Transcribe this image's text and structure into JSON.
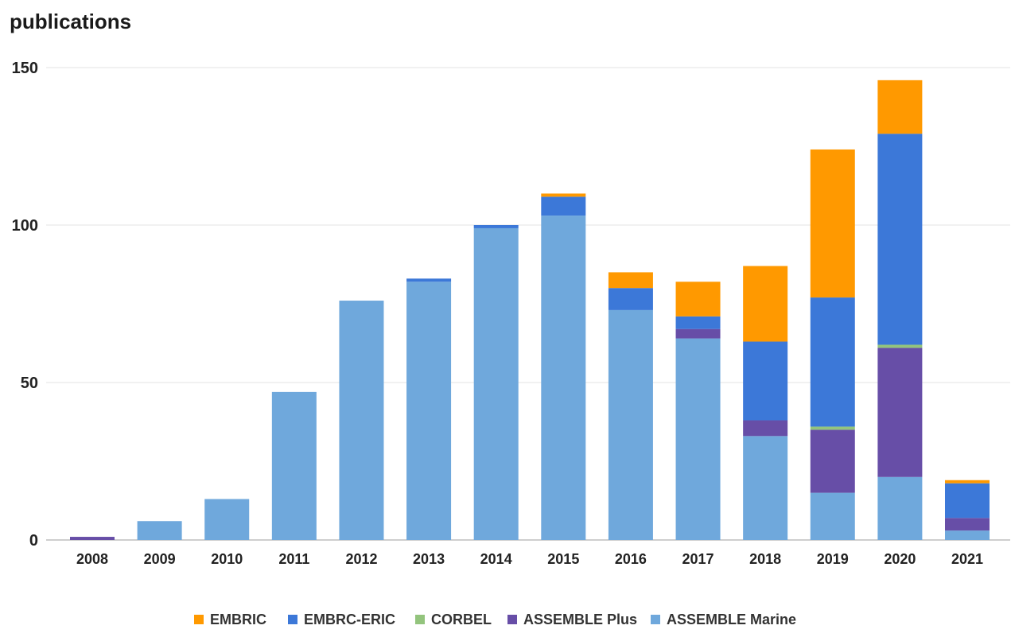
{
  "chart_data": {
    "type": "bar",
    "stacked": true,
    "title": "publications",
    "xlabel": "",
    "ylabel": "",
    "ylim": [
      0,
      150
    ],
    "yticks": [
      0,
      50,
      100,
      150
    ],
    "grid": true,
    "legend_position": "bottom",
    "categories": [
      "2008",
      "2009",
      "2010",
      "2011",
      "2012",
      "2013",
      "2014",
      "2015",
      "2016",
      "2017",
      "2018",
      "2019",
      "2020",
      "2021"
    ],
    "series": [
      {
        "name": "ASSEMBLE Marine",
        "color": "#6fa8dc",
        "values": [
          0,
          6,
          13,
          47,
          76,
          82,
          99,
          103,
          73,
          64,
          33,
          15,
          20,
          3
        ]
      },
      {
        "name": "ASSEMBLE Plus",
        "color": "#674ea7",
        "values": [
          1,
          0,
          0,
          0,
          0,
          0,
          0,
          0,
          0,
          3,
          5,
          20,
          41,
          4
        ]
      },
      {
        "name": "CORBEL",
        "color": "#93c47d",
        "values": [
          0,
          0,
          0,
          0,
          0,
          0,
          0,
          0,
          0,
          0,
          0,
          1,
          1,
          0
        ]
      },
      {
        "name": "EMBRC-ERIC",
        "color": "#3c78d8",
        "values": [
          0,
          0,
          0,
          0,
          0,
          1,
          1,
          6,
          7,
          4,
          25,
          41,
          67,
          11
        ]
      },
      {
        "name": "EMBRIC",
        "color": "#ff9900",
        "values": [
          0,
          0,
          0,
          0,
          0,
          0,
          0,
          1,
          5,
          11,
          24,
          47,
          17,
          1
        ]
      }
    ],
    "legend_order": [
      "EMBRIC",
      "EMBRC-ERIC",
      "CORBEL",
      "ASSEMBLE Plus",
      "ASSEMBLE Marine"
    ]
  }
}
